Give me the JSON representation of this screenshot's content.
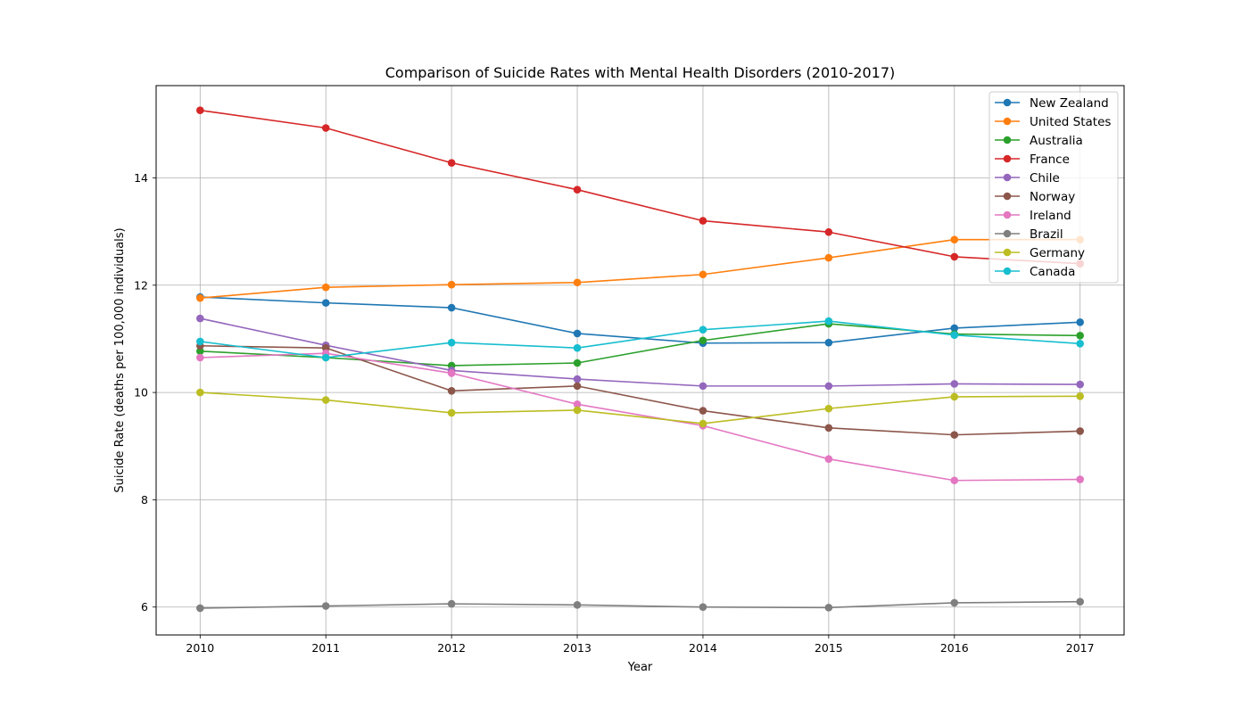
{
  "chart_data": {
    "type": "line",
    "title": "Comparison of Suicide Rates with Mental Health Disorders (2010-2017)",
    "xlabel": "Year",
    "ylabel": "Suicide Rate (deaths per 100,000 individuals)",
    "x": [
      2010,
      2011,
      2012,
      2013,
      2014,
      2015,
      2016,
      2017
    ],
    "xticks": [
      "2010",
      "2011",
      "2012",
      "2013",
      "2014",
      "2015",
      "2016",
      "2017"
    ],
    "yticks": [
      "6",
      "8",
      "10",
      "12",
      "14"
    ],
    "xlim": [
      2009.65,
      2017.35
    ],
    "ylim": [
      5.48,
      15.72
    ],
    "grid": true,
    "legend_position": "top-right",
    "series": [
      {
        "name": "New Zealand",
        "color": "#1f77b4",
        "values": [
          11.78,
          11.67,
          11.58,
          11.1,
          10.92,
          10.93,
          11.2,
          11.31
        ]
      },
      {
        "name": "United States",
        "color": "#ff7f0e",
        "values": [
          11.76,
          11.96,
          12.01,
          12.05,
          12.2,
          12.51,
          12.85,
          12.85
        ]
      },
      {
        "name": "Australia",
        "color": "#2ca02c",
        "values": [
          10.77,
          10.65,
          10.5,
          10.55,
          10.97,
          11.28,
          11.09,
          11.06
        ]
      },
      {
        "name": "France",
        "color": "#d62728",
        "values": [
          15.26,
          14.93,
          14.28,
          13.78,
          13.2,
          12.99,
          12.53,
          12.4
        ]
      },
      {
        "name": "Chile",
        "color": "#9467bd",
        "values": [
          11.38,
          10.88,
          10.41,
          10.25,
          10.12,
          10.12,
          10.16,
          10.15
        ]
      },
      {
        "name": "Norway",
        "color": "#8c564b",
        "values": [
          10.87,
          10.83,
          10.03,
          10.12,
          9.66,
          9.34,
          9.21,
          9.28
        ]
      },
      {
        "name": "Ireland",
        "color": "#e377c2",
        "values": [
          10.65,
          10.73,
          10.36,
          9.78,
          9.38,
          8.76,
          8.36,
          8.38
        ]
      },
      {
        "name": "Brazil",
        "color": "#7f7f7f",
        "values": [
          5.98,
          6.02,
          6.06,
          6.04,
          6.0,
          5.99,
          6.08,
          6.1
        ]
      },
      {
        "name": "Germany",
        "color": "#bcbd22",
        "values": [
          10.0,
          9.86,
          9.62,
          9.67,
          9.42,
          9.7,
          9.92,
          9.93
        ]
      },
      {
        "name": "Canada",
        "color": "#17becf",
        "values": [
          10.95,
          10.65,
          10.93,
          10.83,
          11.17,
          11.33,
          11.07,
          10.91
        ]
      }
    ]
  }
}
